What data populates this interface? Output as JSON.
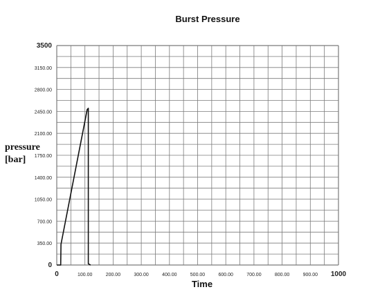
{
  "chart_data": {
    "type": "line",
    "title": "Burst Pressure",
    "xlabel": "Time",
    "ylabel": "pressure [bar]",
    "xlim": [
      0,
      1000
    ],
    "ylim": [
      0,
      3500
    ],
    "grid": true,
    "x_ticks": [
      "0",
      "100.00",
      "200.00",
      "300.00",
      "400.00",
      "500.00",
      "600.00",
      "700.00",
      "800.00",
      "900.00",
      "1000"
    ],
    "y_ticks": [
      "0",
      "350.00",
      "700.00",
      "1050.00",
      "1400.00",
      "1750.00",
      "2100.00",
      "2450.00",
      "2800.00",
      "3150.00",
      "3500"
    ],
    "series": [
      {
        "x": [
          0,
          14,
          15,
          108,
          112,
          112,
          120
        ],
        "y": [
          0,
          0,
          330,
          2480,
          2500,
          20,
          0
        ]
      }
    ]
  }
}
